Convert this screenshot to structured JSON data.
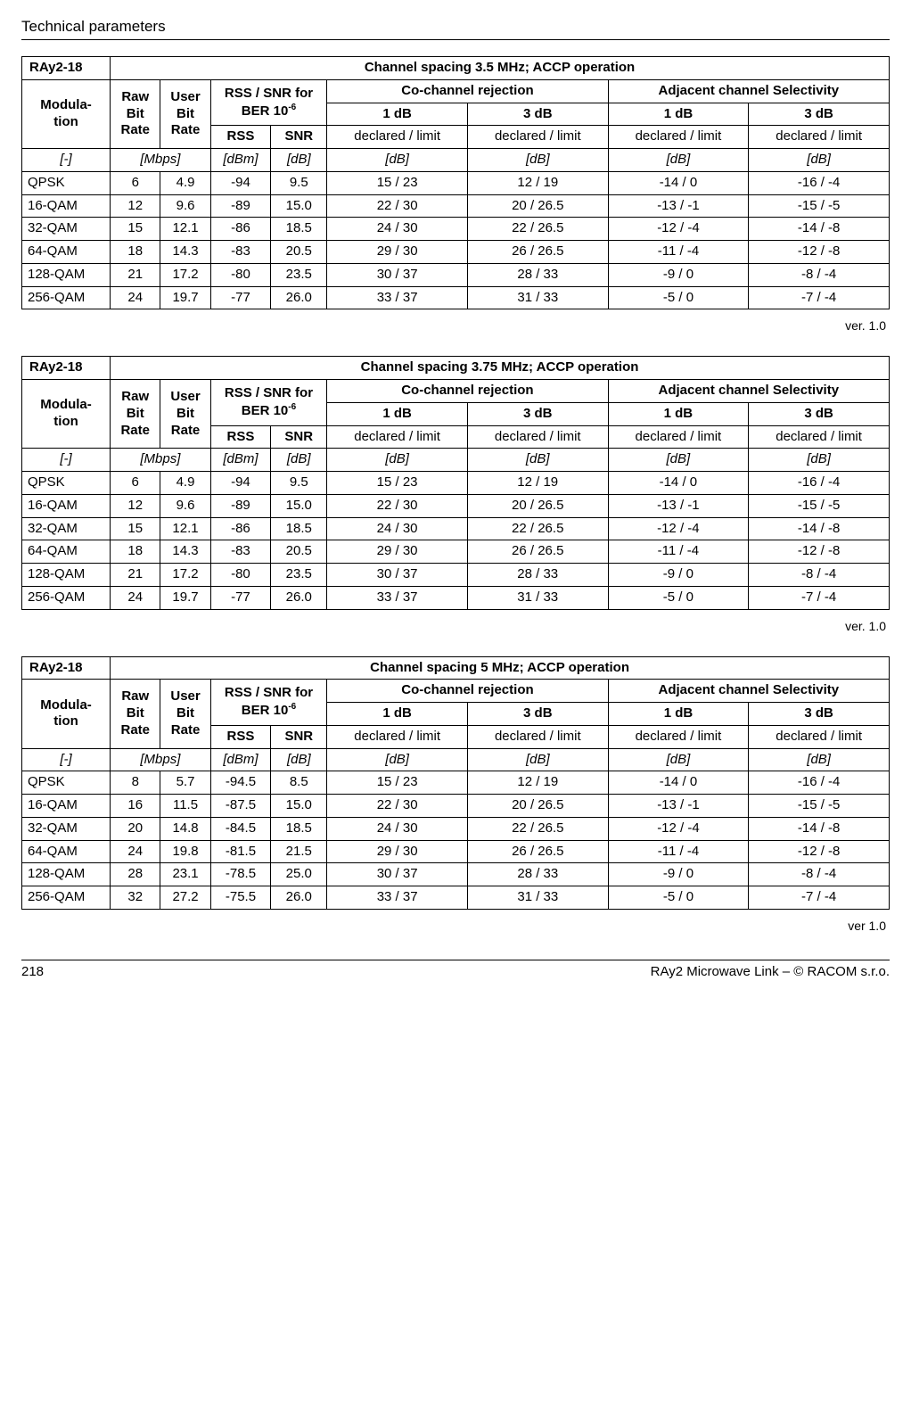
{
  "header": {
    "title": "Technical parameters"
  },
  "footer": {
    "page": "218",
    "right": "RAy2 Microwave Link – © RACOM s.r.o."
  },
  "labels": {
    "device": "RAy2-18",
    "modulation": "Modula-\ntion",
    "raw": "Raw\nBit\nRate",
    "user": "User\nBit\nRate",
    "rss_snr_pre": "RSS / SNR for\nBER 10",
    "rss_snr_sup": "-6",
    "rss": "RSS",
    "snr": "SNR",
    "cochan": "Co-channel rejection",
    "adj": "Adjacent channel Selectivity",
    "db1": "1 dB",
    "db3": "3 dB",
    "decl": "declared / limit",
    "u_dash": "[-]",
    "u_mbps": "[Mbps]",
    "u_dbm": "[dBm]",
    "u_db": "[dB]",
    "ver": "ver. 1.0",
    "ver2": "ver 1.0"
  },
  "tables": [
    {
      "title": "Channel spacing 3.5 MHz; ACCP operation",
      "version_key": "ver",
      "rows": [
        {
          "mod": "QPSK",
          "raw": "6",
          "user": "4.9",
          "rss": "-94",
          "snr": "9.5",
          "c1": "15 / 23",
          "c3": "12 / 19",
          "a1": "-14 / 0",
          "a3": "-16 / -4"
        },
        {
          "mod": "16-QAM",
          "raw": "12",
          "user": "9.6",
          "rss": "-89",
          "snr": "15.0",
          "c1": "22 / 30",
          "c3": "20 / 26.5",
          "a1": "-13 / -1",
          "a3": "-15 / -5"
        },
        {
          "mod": "32-QAM",
          "raw": "15",
          "user": "12.1",
          "rss": "-86",
          "snr": "18.5",
          "c1": "24 / 30",
          "c3": "22 / 26.5",
          "a1": "-12 / -4",
          "a3": "-14 / -8"
        },
        {
          "mod": "64-QAM",
          "raw": "18",
          "user": "14.3",
          "rss": "-83",
          "snr": "20.5",
          "c1": "29 / 30",
          "c3": "26 / 26.5",
          "a1": "-11 / -4",
          "a3": "-12 / -8"
        },
        {
          "mod": "128-QAM",
          "raw": "21",
          "user": "17.2",
          "rss": "-80",
          "snr": "23.5",
          "c1": "30 / 37",
          "c3": "28 / 33",
          "a1": "-9 / 0",
          "a3": "-8 / -4"
        },
        {
          "mod": "256-QAM",
          "raw": "24",
          "user": "19.7",
          "rss": "-77",
          "snr": "26.0",
          "c1": "33 / 37",
          "c3": "31 / 33",
          "a1": "-5 / 0",
          "a3": "-7 / -4"
        }
      ]
    },
    {
      "title": "Channel spacing 3.75 MHz; ACCP operation",
      "version_key": "ver",
      "rows": [
        {
          "mod": "QPSK",
          "raw": "6",
          "user": "4.9",
          "rss": "-94",
          "snr": "9.5",
          "c1": "15 / 23",
          "c3": "12 / 19",
          "a1": "-14 / 0",
          "a3": "-16 / -4"
        },
        {
          "mod": "16-QAM",
          "raw": "12",
          "user": "9.6",
          "rss": "-89",
          "snr": "15.0",
          "c1": "22 / 30",
          "c3": "20 / 26.5",
          "a1": "-13 / -1",
          "a3": "-15 / -5"
        },
        {
          "mod": "32-QAM",
          "raw": "15",
          "user": "12.1",
          "rss": "-86",
          "snr": "18.5",
          "c1": "24 / 30",
          "c3": "22 / 26.5",
          "a1": "-12 / -4",
          "a3": "-14 / -8"
        },
        {
          "mod": "64-QAM",
          "raw": "18",
          "user": "14.3",
          "rss": "-83",
          "snr": "20.5",
          "c1": "29 / 30",
          "c3": "26 / 26.5",
          "a1": "-11 / -4",
          "a3": "-12 / -8"
        },
        {
          "mod": "128-QAM",
          "raw": "21",
          "user": "17.2",
          "rss": "-80",
          "snr": "23.5",
          "c1": "30 / 37",
          "c3": "28 / 33",
          "a1": "-9 / 0",
          "a3": "-8 / -4"
        },
        {
          "mod": "256-QAM",
          "raw": "24",
          "user": "19.7",
          "rss": "-77",
          "snr": "26.0",
          "c1": "33 / 37",
          "c3": "31 / 33",
          "a1": "-5 / 0",
          "a3": "-7 / -4"
        }
      ]
    },
    {
      "title": "Channel spacing 5 MHz; ACCP operation",
      "version_key": "ver2",
      "rows": [
        {
          "mod": "QPSK",
          "raw": "8",
          "user": "5.7",
          "rss": "-94.5",
          "snr": "8.5",
          "c1": "15 / 23",
          "c3": "12 / 19",
          "a1": "-14 / 0",
          "a3": "-16 / -4"
        },
        {
          "mod": "16-QAM",
          "raw": "16",
          "user": "11.5",
          "rss": "-87.5",
          "snr": "15.0",
          "c1": "22 / 30",
          "c3": "20 / 26.5",
          "a1": "-13 / -1",
          "a3": "-15 / -5"
        },
        {
          "mod": "32-QAM",
          "raw": "20",
          "user": "14.8",
          "rss": "-84.5",
          "snr": "18.5",
          "c1": "24 / 30",
          "c3": "22 / 26.5",
          "a1": "-12 / -4",
          "a3": "-14 / -8"
        },
        {
          "mod": "64-QAM",
          "raw": "24",
          "user": "19.8",
          "rss": "-81.5",
          "snr": "21.5",
          "c1": "29 / 30",
          "c3": "26 / 26.5",
          "a1": "-11 / -4",
          "a3": "-12 / -8"
        },
        {
          "mod": "128-QAM",
          "raw": "28",
          "user": "23.1",
          "rss": "-78.5",
          "snr": "25.0",
          "c1": "30 / 37",
          "c3": "28 / 33",
          "a1": "-9 / 0",
          "a3": "-8 / -4"
        },
        {
          "mod": "256-QAM",
          "raw": "32",
          "user": "27.2",
          "rss": "-75.5",
          "snr": "26.0",
          "c1": "33 / 37",
          "c3": "31 / 33",
          "a1": "-5 / 0",
          "a3": "-7 / -4"
        }
      ]
    }
  ]
}
